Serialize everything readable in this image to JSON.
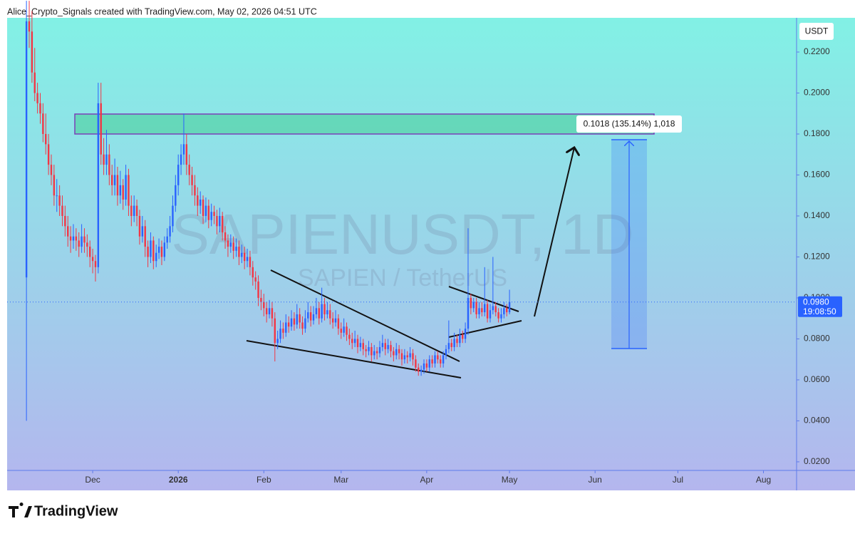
{
  "header": "Alice_Crypto_Signals created with TradingView.com, May 02, 2026 04:51 UTC",
  "footer": {
    "brand": "TradingView"
  },
  "chart_data": {
    "type": "candlestick",
    "watermark": {
      "symbol": "SAPIENUSDT, 1D",
      "description": "SAPIEN / TetherUS"
    },
    "currency": "USDT",
    "up_color": "#2962ff",
    "down_color": "#f23645",
    "last_price": {
      "value": 0.098,
      "label": "0.0980"
    },
    "countdown": "19:08:50",
    "measure_label": "0.1018 (135.14%) 1,018",
    "xlim": [
      -7,
      279
    ],
    "xticks": [
      {
        "value": 24,
        "label": "Dec"
      },
      {
        "value": 55,
        "label": "2026"
      },
      {
        "value": 86,
        "label": "Feb"
      },
      {
        "value": 114,
        "label": "Mar"
      },
      {
        "value": 145,
        "label": "Apr"
      },
      {
        "value": 175,
        "label": "May"
      },
      {
        "value": 206,
        "label": "Jun"
      },
      {
        "value": 236,
        "label": "Jul"
      },
      {
        "value": 267,
        "label": "Aug"
      }
    ],
    "ylim": [
      0.0158,
      0.2367
    ],
    "yticks": [
      {
        "value": 0.02,
        "label": "0.0200"
      },
      {
        "value": 0.04,
        "label": "0.0400"
      },
      {
        "value": 0.06,
        "label": "0.0600"
      },
      {
        "value": 0.08,
        "label": "0.0800"
      },
      {
        "value": 0.1,
        "label": "0.1000"
      },
      {
        "value": 0.12,
        "label": "0.1200"
      },
      {
        "value": 0.14,
        "label": "0.1400"
      },
      {
        "value": 0.16,
        "label": "0.1600"
      },
      {
        "value": 0.18,
        "label": "0.1800"
      },
      {
        "value": 0.2,
        "label": "0.2000"
      },
      {
        "value": 0.22,
        "label": "0.2200"
      }
    ],
    "candles": [
      [
        0.11,
        0.245,
        0.04,
        0.235
      ],
      [
        0.235,
        0.245,
        0.222,
        0.23
      ],
      [
        0.23,
        0.24,
        0.205,
        0.21
      ],
      [
        0.21,
        0.222,
        0.196,
        0.2
      ],
      [
        0.2,
        0.205,
        0.19,
        0.195
      ],
      [
        0.195,
        0.2,
        0.185,
        0.19
      ],
      [
        0.19,
        0.195,
        0.176,
        0.18
      ],
      [
        0.18,
        0.19,
        0.17,
        0.175
      ],
      [
        0.175,
        0.18,
        0.16,
        0.165
      ],
      [
        0.165,
        0.17,
        0.155,
        0.16
      ],
      [
        0.16,
        0.165,
        0.145,
        0.15
      ],
      [
        0.15,
        0.158,
        0.142,
        0.15
      ],
      [
        0.15,
        0.155,
        0.14,
        0.145
      ],
      [
        0.145,
        0.15,
        0.135,
        0.14
      ],
      [
        0.14,
        0.145,
        0.13,
        0.135
      ],
      [
        0.135,
        0.14,
        0.125,
        0.13
      ],
      [
        0.13,
        0.135,
        0.122,
        0.128
      ],
      [
        0.128,
        0.136,
        0.124,
        0.13
      ],
      [
        0.13,
        0.134,
        0.123,
        0.128
      ],
      [
        0.128,
        0.132,
        0.12,
        0.125
      ],
      [
        0.125,
        0.136,
        0.122,
        0.13
      ],
      [
        0.13,
        0.134,
        0.122,
        0.127
      ],
      [
        0.127,
        0.131,
        0.12,
        0.125
      ],
      [
        0.125,
        0.128,
        0.115,
        0.12
      ],
      [
        0.12,
        0.124,
        0.112,
        0.118
      ],
      [
        0.118,
        0.121,
        0.108,
        0.115
      ],
      [
        0.115,
        0.205,
        0.112,
        0.195
      ],
      [
        0.195,
        0.205,
        0.165,
        0.17
      ],
      [
        0.17,
        0.178,
        0.16,
        0.165
      ],
      [
        0.165,
        0.182,
        0.16,
        0.17
      ],
      [
        0.17,
        0.175,
        0.155,
        0.16
      ],
      [
        0.16,
        0.165,
        0.15,
        0.155
      ],
      [
        0.155,
        0.168,
        0.15,
        0.16
      ],
      [
        0.16,
        0.164,
        0.145,
        0.15
      ],
      [
        0.15,
        0.162,
        0.146,
        0.155
      ],
      [
        0.155,
        0.158,
        0.143,
        0.148
      ],
      [
        0.148,
        0.165,
        0.145,
        0.16
      ],
      [
        0.16,
        0.163,
        0.14,
        0.145
      ],
      [
        0.145,
        0.15,
        0.135,
        0.14
      ],
      [
        0.14,
        0.15,
        0.137,
        0.145
      ],
      [
        0.145,
        0.148,
        0.135,
        0.14
      ],
      [
        0.14,
        0.143,
        0.126,
        0.13
      ],
      [
        0.13,
        0.14,
        0.127,
        0.135
      ],
      [
        0.135,
        0.138,
        0.12,
        0.125
      ],
      [
        0.125,
        0.128,
        0.115,
        0.12
      ],
      [
        0.12,
        0.132,
        0.117,
        0.128
      ],
      [
        0.128,
        0.13,
        0.114,
        0.118
      ],
      [
        0.118,
        0.126,
        0.115,
        0.122
      ],
      [
        0.122,
        0.129,
        0.119,
        0.125
      ],
      [
        0.125,
        0.128,
        0.116,
        0.12
      ],
      [
        0.12,
        0.13,
        0.118,
        0.127
      ],
      [
        0.127,
        0.134,
        0.124,
        0.13
      ],
      [
        0.13,
        0.14,
        0.127,
        0.135
      ],
      [
        0.135,
        0.15,
        0.132,
        0.145
      ],
      [
        0.145,
        0.16,
        0.142,
        0.155
      ],
      [
        0.155,
        0.17,
        0.15,
        0.165
      ],
      [
        0.165,
        0.175,
        0.16,
        0.17
      ],
      [
        0.17,
        0.19,
        0.165,
        0.175
      ],
      [
        0.175,
        0.18,
        0.16,
        0.165
      ],
      [
        0.165,
        0.17,
        0.155,
        0.16
      ],
      [
        0.16,
        0.164,
        0.15,
        0.155
      ],
      [
        0.155,
        0.16,
        0.145,
        0.15
      ],
      [
        0.15,
        0.154,
        0.14,
        0.145
      ],
      [
        0.145,
        0.152,
        0.141,
        0.148
      ],
      [
        0.148,
        0.15,
        0.136,
        0.14
      ],
      [
        0.14,
        0.149,
        0.137,
        0.145
      ],
      [
        0.145,
        0.148,
        0.134,
        0.138
      ],
      [
        0.138,
        0.146,
        0.135,
        0.142
      ],
      [
        0.142,
        0.145,
        0.136,
        0.14
      ],
      [
        0.14,
        0.143,
        0.131,
        0.135
      ],
      [
        0.135,
        0.144,
        0.132,
        0.14
      ],
      [
        0.14,
        0.142,
        0.128,
        0.132
      ],
      [
        0.132,
        0.135,
        0.124,
        0.128
      ],
      [
        0.128,
        0.131,
        0.12,
        0.125
      ],
      [
        0.125,
        0.131,
        0.122,
        0.127
      ],
      [
        0.127,
        0.13,
        0.119,
        0.123
      ],
      [
        0.123,
        0.129,
        0.12,
        0.125
      ],
      [
        0.125,
        0.128,
        0.116,
        0.12
      ],
      [
        0.12,
        0.126,
        0.117,
        0.122
      ],
      [
        0.122,
        0.125,
        0.114,
        0.118
      ],
      [
        0.118,
        0.124,
        0.115,
        0.12
      ],
      [
        0.12,
        0.123,
        0.111,
        0.115
      ],
      [
        0.115,
        0.118,
        0.106,
        0.11
      ],
      [
        0.11,
        0.113,
        0.104,
        0.108
      ],
      [
        0.108,
        0.111,
        0.096,
        0.1
      ],
      [
        0.1,
        0.104,
        0.094,
        0.098
      ],
      [
        0.098,
        0.102,
        0.091,
        0.095
      ],
      [
        0.095,
        0.098,
        0.088,
        0.092
      ],
      [
        0.092,
        0.099,
        0.09,
        0.095
      ],
      [
        0.095,
        0.098,
        0.086,
        0.09
      ],
      [
        0.09,
        0.093,
        0.069,
        0.078
      ],
      [
        0.078,
        0.084,
        0.075,
        0.08
      ],
      [
        0.08,
        0.089,
        0.078,
        0.085
      ],
      [
        0.085,
        0.088,
        0.08,
        0.083
      ],
      [
        0.083,
        0.092,
        0.081,
        0.088
      ],
      [
        0.088,
        0.091,
        0.083,
        0.086
      ],
      [
        0.086,
        0.094,
        0.084,
        0.09
      ],
      [
        0.09,
        0.093,
        0.084,
        0.087
      ],
      [
        0.087,
        0.097,
        0.085,
        0.092
      ],
      [
        0.092,
        0.095,
        0.085,
        0.088
      ],
      [
        0.088,
        0.091,
        0.082,
        0.085
      ],
      [
        0.085,
        0.094,
        0.083,
        0.09
      ],
      [
        0.09,
        0.098,
        0.088,
        0.093
      ],
      [
        0.093,
        0.096,
        0.086,
        0.089
      ],
      [
        0.089,
        0.096,
        0.087,
        0.092
      ],
      [
        0.092,
        0.1,
        0.09,
        0.095
      ],
      [
        0.095,
        0.098,
        0.087,
        0.09
      ],
      [
        0.09,
        0.105,
        0.088,
        0.097
      ],
      [
        0.097,
        0.1,
        0.089,
        0.092
      ],
      [
        0.092,
        0.098,
        0.09,
        0.094
      ],
      [
        0.094,
        0.097,
        0.087,
        0.09
      ],
      [
        0.09,
        0.093,
        0.085,
        0.088
      ],
      [
        0.088,
        0.094,
        0.086,
        0.09
      ],
      [
        0.09,
        0.092,
        0.082,
        0.085
      ],
      [
        0.085,
        0.088,
        0.08,
        0.083
      ],
      [
        0.083,
        0.09,
        0.081,
        0.086
      ],
      [
        0.086,
        0.088,
        0.079,
        0.082
      ],
      [
        0.082,
        0.085,
        0.077,
        0.08
      ],
      [
        0.08,
        0.083,
        0.075,
        0.078
      ],
      [
        0.078,
        0.084,
        0.076,
        0.08
      ],
      [
        0.08,
        0.082,
        0.073,
        0.076
      ],
      [
        0.076,
        0.081,
        0.074,
        0.078
      ],
      [
        0.078,
        0.08,
        0.072,
        0.075
      ],
      [
        0.075,
        0.077,
        0.071,
        0.074
      ],
      [
        0.074,
        0.079,
        0.072,
        0.076
      ],
      [
        0.076,
        0.078,
        0.069,
        0.072
      ],
      [
        0.072,
        0.077,
        0.07,
        0.074
      ],
      [
        0.074,
        0.076,
        0.07,
        0.073
      ],
      [
        0.073,
        0.079,
        0.071,
        0.076
      ],
      [
        0.076,
        0.082,
        0.074,
        0.078
      ],
      [
        0.078,
        0.08,
        0.072,
        0.075
      ],
      [
        0.075,
        0.08,
        0.073,
        0.077
      ],
      [
        0.077,
        0.079,
        0.071,
        0.074
      ],
      [
        0.074,
        0.076,
        0.069,
        0.072
      ],
      [
        0.072,
        0.078,
        0.07,
        0.075
      ],
      [
        0.075,
        0.077,
        0.07,
        0.073
      ],
      [
        0.073,
        0.075,
        0.067,
        0.07
      ],
      [
        0.07,
        0.075,
        0.068,
        0.072
      ],
      [
        0.072,
        0.074,
        0.068,
        0.071
      ],
      [
        0.071,
        0.076,
        0.069,
        0.073
      ],
      [
        0.073,
        0.075,
        0.067,
        0.07
      ],
      [
        0.07,
        0.072,
        0.064,
        0.066
      ],
      [
        0.066,
        0.068,
        0.062,
        0.064
      ],
      [
        0.064,
        0.067,
        0.062,
        0.065
      ],
      [
        0.065,
        0.07,
        0.063,
        0.068
      ],
      [
        0.068,
        0.07,
        0.064,
        0.066
      ],
      [
        0.066,
        0.072,
        0.064,
        0.07
      ],
      [
        0.07,
        0.072,
        0.066,
        0.068
      ],
      [
        0.068,
        0.074,
        0.066,
        0.072
      ],
      [
        0.072,
        0.074,
        0.068,
        0.07
      ],
      [
        0.07,
        0.072,
        0.066,
        0.068
      ],
      [
        0.068,
        0.074,
        0.066,
        0.072
      ],
      [
        0.072,
        0.077,
        0.07,
        0.075
      ],
      [
        0.075,
        0.089,
        0.073,
        0.078
      ],
      [
        0.078,
        0.08,
        0.074,
        0.076
      ],
      [
        0.076,
        0.083,
        0.074,
        0.08
      ],
      [
        0.08,
        0.082,
        0.076,
        0.078
      ],
      [
        0.078,
        0.085,
        0.076,
        0.082
      ],
      [
        0.082,
        0.084,
        0.078,
        0.08
      ],
      [
        0.08,
        0.088,
        0.078,
        0.085
      ],
      [
        0.085,
        0.134,
        0.082,
        0.1
      ],
      [
        0.1,
        0.102,
        0.092,
        0.095
      ],
      [
        0.095,
        0.1,
        0.093,
        0.098
      ],
      [
        0.098,
        0.1,
        0.09,
        0.092
      ],
      [
        0.092,
        0.098,
        0.09,
        0.095
      ],
      [
        0.095,
        0.098,
        0.091,
        0.093
      ],
      [
        0.093,
        0.115,
        0.091,
        0.097
      ],
      [
        0.097,
        0.099,
        0.088,
        0.09
      ],
      [
        0.09,
        0.097,
        0.088,
        0.094
      ],
      [
        0.094,
        0.12,
        0.092,
        0.096
      ],
      [
        0.096,
        0.098,
        0.091,
        0.093
      ],
      [
        0.093,
        0.095,
        0.088,
        0.09
      ],
      [
        0.09,
        0.095,
        0.088,
        0.092
      ],
      [
        0.092,
        0.098,
        0.09,
        0.095
      ],
      [
        0.095,
        0.097,
        0.091,
        0.093
      ],
      [
        0.093,
        0.104,
        0.092,
        0.098
      ]
    ]
  }
}
